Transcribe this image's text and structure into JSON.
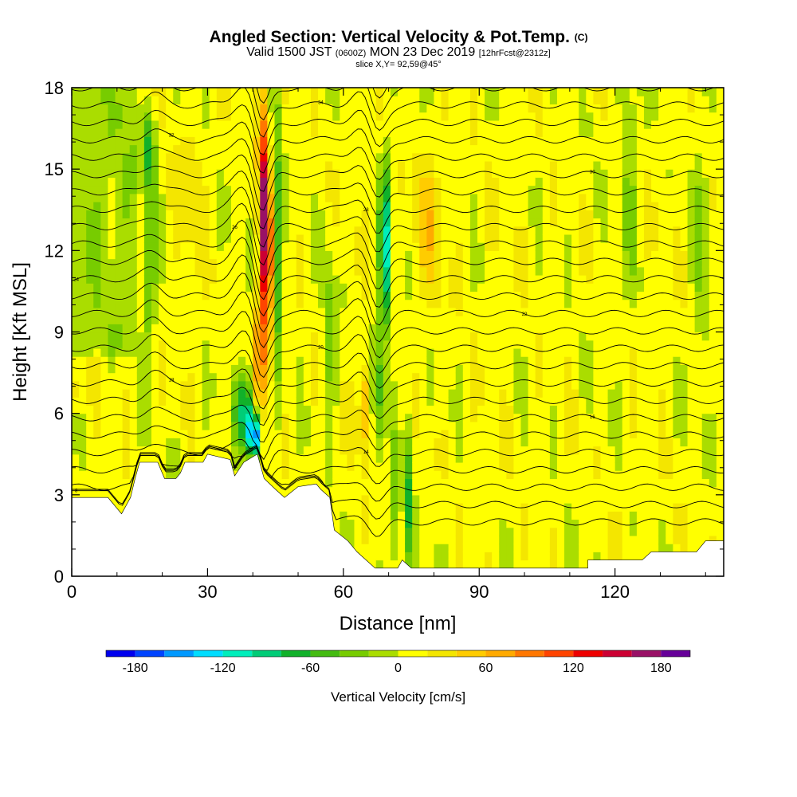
{
  "header": {
    "title": "Angled Section: Vertical Velocity & Pot.Temp.",
    "title_unit": "(C)",
    "valid_prefix": "Valid 1500 JST",
    "valid_utc": "(0600Z)",
    "valid_date": "MON 23 Dec 2019",
    "forecast": "[12hrFcst@2312z]",
    "slice": "slice X,Y= 92,59@45°"
  },
  "chart_data": {
    "type": "heatmap",
    "title": "Angled Section: Vertical Velocity & Pot.Temp.",
    "xlabel": "Distance [nm]",
    "ylabel": "Height [Kft MSL]",
    "xlim": [
      0,
      144
    ],
    "ylim": [
      0,
      18
    ],
    "x_ticks": [
      0,
      30,
      60,
      90,
      120
    ],
    "x_tick_labels": [
      "0",
      "30",
      "60",
      "90",
      "120"
    ],
    "y_ticks": [
      0,
      3,
      6,
      9,
      12,
      15,
      18
    ],
    "y_tick_labels": [
      "0",
      "3",
      "6",
      "9",
      "12",
      "15",
      "18"
    ],
    "colorbar": {
      "label": "Vertical Velocity [cm/s]",
      "min": -200,
      "max": 200,
      "bin_width": 20,
      "tick_values": [
        -180,
        -120,
        -60,
        0,
        60,
        120,
        180
      ],
      "tick_labels": [
        "-180",
        "-120",
        "-60",
        "0",
        "60",
        "120",
        "180"
      ],
      "colors": [
        "#0000ee",
        "#0044ff",
        "#0099ff",
        "#00ddff",
        "#00eebb",
        "#00cc77",
        "#11b12a",
        "#44bb11",
        "#77cc00",
        "#aadd00",
        "#ffff00",
        "#f4e600",
        "#ffcc00",
        "#ffaa00",
        "#ff7700",
        "#ff4400",
        "#ee0000",
        "#cc0033",
        "#991166",
        "#660099"
      ]
    },
    "features": [
      {
        "name": "updraft",
        "x": 42.5,
        "y0": 5,
        "y1": 18,
        "value": 180
      },
      {
        "name": "downdraft",
        "x": 40.5,
        "y0": 4.5,
        "y1": 6.5,
        "value": -180
      },
      {
        "name": "downdraft",
        "x": 69,
        "y0": 6,
        "y1": 17,
        "value": -120
      },
      {
        "name": "downdraft",
        "x": 17,
        "y0": 8,
        "y1": 18,
        "value": -100
      },
      {
        "name": "downdraft",
        "x": 74,
        "y0": 0.5,
        "y1": 7,
        "value": -60
      },
      {
        "name": "updraft",
        "x": 65,
        "y0": 4,
        "y1": 8,
        "value": 60
      }
    ],
    "isentropes": {
      "count": 28,
      "label_values": [
        "8",
        "12",
        "14",
        "16",
        "18",
        "20",
        "22",
        "24",
        "26",
        "28",
        "30",
        "32",
        "34",
        "36",
        "38"
      ]
    },
    "terrain_top_kft": [
      [
        0,
        2.9
      ],
      [
        8,
        2.9
      ],
      [
        9,
        2.7
      ],
      [
        11,
        2.3
      ],
      [
        13,
        2.9
      ],
      [
        14,
        3.6
      ],
      [
        15,
        4.2
      ],
      [
        19,
        4.2
      ],
      [
        20,
        3.8
      ],
      [
        20.5,
        3.6
      ],
      [
        23,
        3.6
      ],
      [
        24,
        3.8
      ],
      [
        25,
        4.2
      ],
      [
        29,
        4.2
      ],
      [
        30,
        4.5
      ],
      [
        35,
        4.3
      ],
      [
        36,
        3.7
      ],
      [
        38,
        4.2
      ],
      [
        41,
        4.5
      ],
      [
        42.5,
        3.6
      ],
      [
        45,
        3.2
      ],
      [
        47,
        2.9
      ],
      [
        50,
        3.3
      ],
      [
        54,
        3.4
      ],
      [
        55,
        3.2
      ],
      [
        57,
        2.9
      ],
      [
        58,
        1.7
      ],
      [
        61,
        1.3
      ],
      [
        63,
        0.9
      ],
      [
        67,
        0.3
      ],
      [
        72,
        0.3
      ],
      [
        73,
        0.6
      ],
      [
        75,
        0.3
      ],
      [
        114,
        0.3
      ],
      [
        114,
        0.6
      ],
      [
        126,
        0.6
      ],
      [
        128,
        0.9
      ],
      [
        138,
        0.9
      ],
      [
        140,
        1.3
      ],
      [
        144,
        1.3
      ]
    ]
  }
}
